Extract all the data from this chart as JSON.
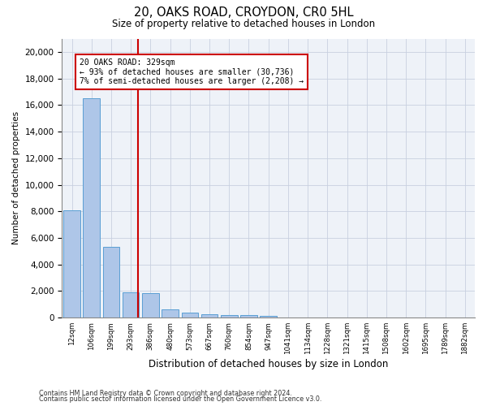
{
  "title_line1": "20, OAKS ROAD, CROYDON, CR0 5HL",
  "title_line2": "Size of property relative to detached houses in London",
  "xlabel": "Distribution of detached houses by size in London",
  "ylabel": "Number of detached properties",
  "bar_labels": [
    "12sqm",
    "106sqm",
    "199sqm",
    "293sqm",
    "386sqm",
    "480sqm",
    "573sqm",
    "667sqm",
    "760sqm",
    "854sqm",
    "947sqm",
    "1041sqm",
    "1134sqm",
    "1228sqm",
    "1321sqm",
    "1415sqm",
    "1508sqm",
    "1602sqm",
    "1695sqm",
    "1789sqm",
    "1882sqm"
  ],
  "bar_values": [
    8100,
    16500,
    5300,
    1900,
    1850,
    650,
    350,
    270,
    220,
    170,
    130,
    0,
    0,
    0,
    0,
    0,
    0,
    0,
    0,
    0,
    0
  ],
  "bar_color": "#aec6e8",
  "bar_edge_color": "#5a9fd4",
  "vline_x": 3.35,
  "vline_color": "#cc0000",
  "annotation_text": "20 OAKS ROAD: 329sqm\n← 93% of detached houses are smaller (30,736)\n7% of semi-detached houses are larger (2,208) →",
  "ylim": [
    0,
    21000
  ],
  "yticks": [
    0,
    2000,
    4000,
    6000,
    8000,
    10000,
    12000,
    14000,
    16000,
    18000,
    20000
  ],
  "grid_color": "#c8d0e0",
  "bg_color": "#eef2f8",
  "footer_line1": "Contains HM Land Registry data © Crown copyright and database right 2024.",
  "footer_line2": "Contains public sector information licensed under the Open Government Licence v3.0."
}
